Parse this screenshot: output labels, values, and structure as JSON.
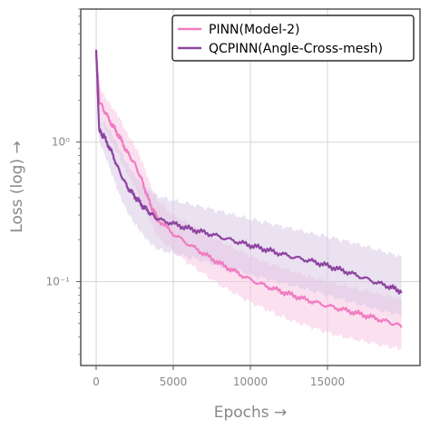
{
  "chart_data": {
    "type": "line",
    "title": "",
    "xlabel": "Epochs →",
    "ylabel": "Loss (log) →",
    "yscale": "log",
    "xlim": [
      -1000,
      21000
    ],
    "ylim": [
      0.025,
      9.0
    ],
    "grid": true,
    "legend_position": "top-right",
    "x_ticks": [
      0,
      5000,
      10000,
      15000
    ],
    "x_tick_labels": [
      "0",
      "5000",
      "10000",
      "15000"
    ],
    "y_ticks": [
      0.1,
      1.0
    ],
    "y_tick_labels": [
      "10⁻¹",
      "10⁰"
    ],
    "series": [
      {
        "name": "PINN(Model-2)",
        "color": "#f07cc0",
        "band_color": "#f7c6e3",
        "x": [
          0,
          200,
          500,
          1000,
          1500,
          2000,
          2500,
          3000,
          3500,
          4000,
          5000,
          6000,
          7000,
          8000,
          9000,
          10000,
          11000,
          12000,
          13000,
          14000,
          15000,
          16000,
          17000,
          18000,
          19000,
          19800
        ],
        "y": [
          4.5,
          2.0,
          1.7,
          1.35,
          1.1,
          0.85,
          0.7,
          0.52,
          0.36,
          0.28,
          0.22,
          0.185,
          0.158,
          0.135,
          0.118,
          0.103,
          0.093,
          0.085,
          0.078,
          0.072,
          0.067,
          0.063,
          0.059,
          0.055,
          0.051,
          0.048
        ],
        "y_lower": [
          3.8,
          1.6,
          1.3,
          1.0,
          0.8,
          0.6,
          0.48,
          0.36,
          0.27,
          0.21,
          0.165,
          0.135,
          0.113,
          0.095,
          0.082,
          0.071,
          0.063,
          0.056,
          0.051,
          0.047,
          0.043,
          0.04,
          0.038,
          0.036,
          0.034,
          0.033
        ],
        "y_upper": [
          5.2,
          2.5,
          2.2,
          1.8,
          1.5,
          1.15,
          0.95,
          0.72,
          0.5,
          0.38,
          0.3,
          0.26,
          0.225,
          0.195,
          0.172,
          0.152,
          0.138,
          0.126,
          0.116,
          0.107,
          0.1,
          0.094,
          0.088,
          0.083,
          0.078,
          0.074
        ]
      },
      {
        "name": "QCPINN(Angle-Cross-mesh)",
        "color": "#8e44a0",
        "band_color": "#d9c8e6",
        "x": [
          0,
          200,
          500,
          1000,
          1500,
          2000,
          2500,
          3000,
          3500,
          4000,
          5000,
          6000,
          7000,
          8000,
          9000,
          10000,
          11000,
          12000,
          13000,
          14000,
          15000,
          16000,
          17000,
          18000,
          19000,
          19800
        ],
        "y": [
          4.6,
          1.2,
          1.1,
          0.85,
          0.62,
          0.48,
          0.41,
          0.35,
          0.31,
          0.28,
          0.26,
          0.24,
          0.225,
          0.21,
          0.195,
          0.182,
          0.17,
          0.158,
          0.148,
          0.14,
          0.13,
          0.12,
          0.11,
          0.1,
          0.092,
          0.085
        ],
        "y_lower": [
          4.0,
          1.0,
          0.85,
          0.6,
          0.42,
          0.32,
          0.26,
          0.22,
          0.19,
          0.17,
          0.16,
          0.15,
          0.14,
          0.13,
          0.12,
          0.112,
          0.105,
          0.098,
          0.092,
          0.086,
          0.08,
          0.074,
          0.069,
          0.064,
          0.06,
          0.057
        ],
        "y_upper": [
          5.2,
          1.5,
          1.4,
          1.15,
          0.9,
          0.7,
          0.58,
          0.5,
          0.45,
          0.41,
          0.38,
          0.36,
          0.34,
          0.32,
          0.3,
          0.28,
          0.265,
          0.25,
          0.235,
          0.222,
          0.21,
          0.198,
          0.185,
          0.172,
          0.16,
          0.15
        ]
      }
    ]
  }
}
